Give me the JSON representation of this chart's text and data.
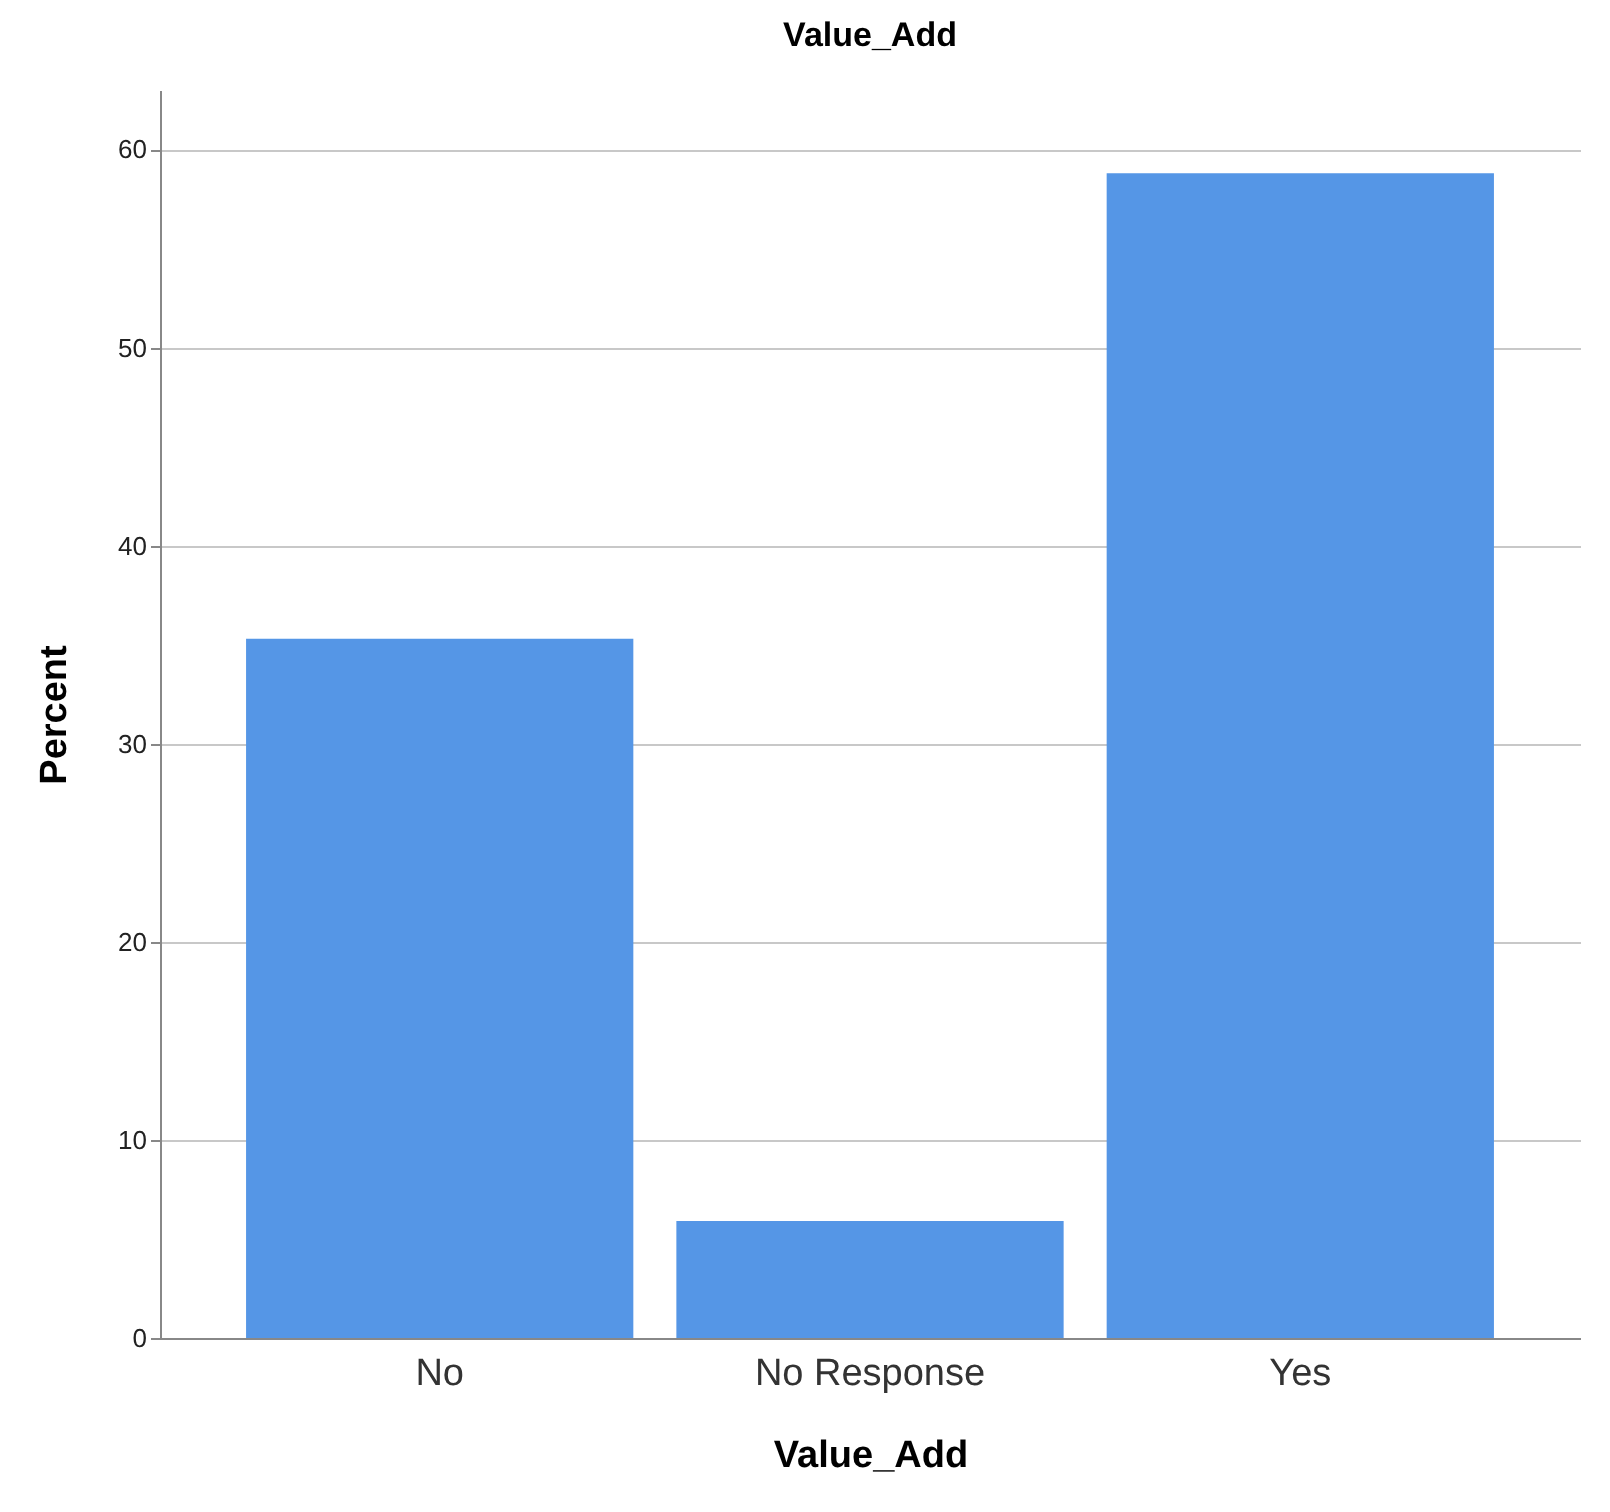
{
  "chart_data": {
    "type": "bar",
    "title": "Value_Add",
    "xlabel": "Value_Add",
    "ylabel": "Percent",
    "categories": [
      "No",
      "No Response",
      "Yes"
    ],
    "values": [
      35.3,
      5.9,
      58.8
    ],
    "color": "#5596e6",
    "ylim": [
      0,
      63
    ],
    "yticks": [
      0,
      10,
      20,
      30,
      40,
      50,
      60
    ],
    "grid": "y"
  }
}
